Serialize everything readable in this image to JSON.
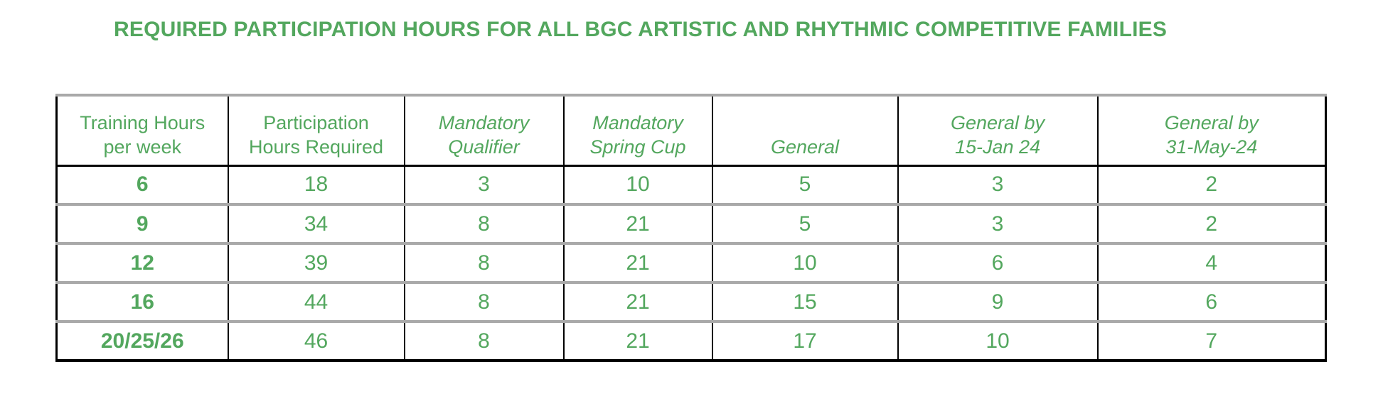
{
  "title": "REQUIRED PARTICIPATION HOURS FOR ALL BGC ARTISTIC AND RHYTHMIC COMPETITIVE FAMILIES",
  "colors": {
    "text_green": "#53A75E",
    "grid_black": "#000000",
    "grid_gray": "#a9a9a9"
  },
  "table": {
    "type": "table",
    "headers": [
      {
        "lines": [
          "Training Hours",
          "per week"
        ],
        "style": "regular"
      },
      {
        "lines": [
          "Participation",
          "Hours Required"
        ],
        "style": "regular"
      },
      {
        "lines": [
          "Mandatory",
          "Qualifier"
        ],
        "style": "italic"
      },
      {
        "lines": [
          "Mandatory",
          "Spring Cup"
        ],
        "style": "italic"
      },
      {
        "lines": [
          "General"
        ],
        "style": "italic"
      },
      {
        "lines": [
          "General by",
          "15-Jan 24"
        ],
        "style": "italic"
      },
      {
        "lines": [
          "General by",
          "31-May-24"
        ],
        "style": "italic"
      }
    ],
    "rows": [
      [
        "6",
        "18",
        "3",
        "10",
        "5",
        "3",
        "2"
      ],
      [
        "9",
        "34",
        "8",
        "21",
        "5",
        "3",
        "2"
      ],
      [
        "12",
        "39",
        "8",
        "21",
        "10",
        "6",
        "4"
      ],
      [
        "16",
        "44",
        "8",
        "21",
        "15",
        "9",
        "6"
      ],
      [
        "20/25/26",
        "46",
        "8",
        "21",
        "17",
        "10",
        "7"
      ]
    ]
  }
}
